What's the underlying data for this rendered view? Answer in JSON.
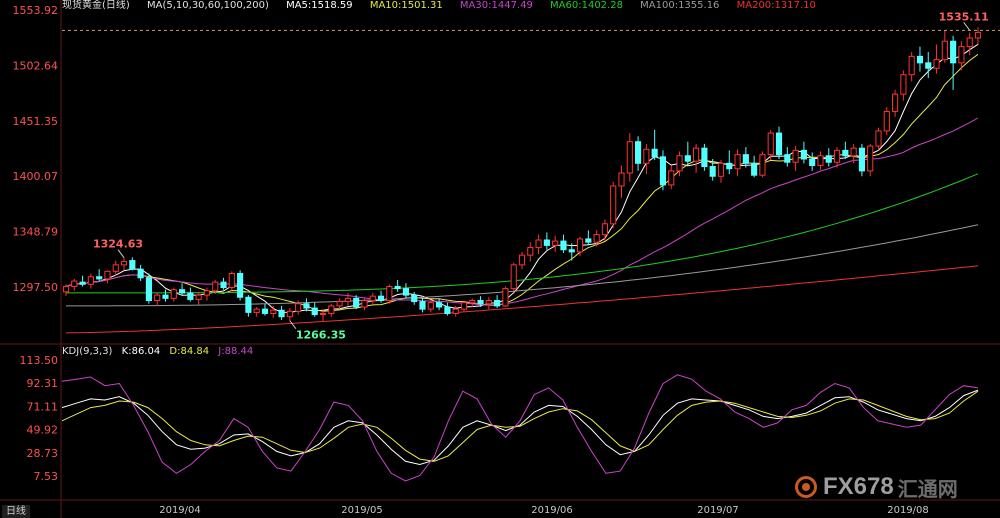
{
  "legend": {
    "title": "现货黄金(日线)",
    "params": "MA(5,10,30,60,100,200)",
    "ma5": "MA5:1518.59",
    "ma10": "MA10:1501.31",
    "ma30": "MA30:1447.49",
    "ma60": "MA60:1402.28",
    "ma100": "MA100:1355.16",
    "ma200": "MA200:1317.10"
  },
  "kdj": {
    "params": "KDJ(9,3,3)",
    "k": "K:86.04",
    "d": "D:84.84",
    "j": "J:88.44"
  },
  "period_tag": "日线",
  "watermark": {
    "brand": "FX678",
    "cn": "汇通网"
  },
  "colors": {
    "up": "#ff3232",
    "down": "#54ffff",
    "up_fill": "#000000",
    "ma5": "#ffffff",
    "ma10": "#e8e84a",
    "ma30": "#cc44cc",
    "ma60": "#22cc22",
    "ma100": "#9a9a9a",
    "ma200": "#ee3333",
    "k": "#ffffff",
    "d": "#e8e84a",
    "j": "#cc44cc",
    "axis_text": "#ff5050",
    "kdj_axis_text": "#ff5050",
    "date_text": "#c8c8c8"
  },
  "chart_data": [
    {
      "type": "candlestick",
      "title": "",
      "y_ticks": [
        1297.5,
        1348.79,
        1400.07,
        1451.35,
        1502.64,
        1553.92
      ],
      "ylim": [
        1250,
        1560
      ],
      "x_labels": [
        "2019/04",
        "2019/05",
        "2019/06",
        "2019/07",
        "2019/08"
      ],
      "annotations": [
        {
          "label": "1324.63",
          "value": 1324.63
        },
        {
          "label": "1266.35",
          "value": 1266.35
        },
        {
          "label": "1535.11",
          "value": 1535.11
        }
      ],
      "current_price_line": 1535.11,
      "candles": [
        [
          1293,
          1300,
          1289,
          1298
        ],
        [
          1298,
          1305,
          1294,
          1303
        ],
        [
          1302,
          1308,
          1298,
          1300
        ],
        [
          1300,
          1310,
          1296,
          1307
        ],
        [
          1307,
          1314,
          1303,
          1305
        ],
        [
          1305,
          1313,
          1301,
          1312
        ],
        [
          1312,
          1322,
          1308,
          1318
        ],
        [
          1318,
          1325,
          1313,
          1321
        ],
        [
          1322,
          1325,
          1313,
          1314
        ],
        [
          1314,
          1318,
          1303,
          1306
        ],
        [
          1306,
          1310,
          1282,
          1285
        ],
        [
          1285,
          1292,
          1280,
          1290
        ],
        [
          1290,
          1295,
          1284,
          1287
        ],
        [
          1287,
          1297,
          1284,
          1295
        ],
        [
          1295,
          1301,
          1290,
          1292
        ],
        [
          1292,
          1297,
          1284,
          1286
        ],
        [
          1286,
          1292,
          1281,
          1290
        ],
        [
          1290,
          1297,
          1285,
          1294
        ],
        [
          1294,
          1304,
          1291,
          1302
        ],
        [
          1302,
          1306,
          1295,
          1297
        ],
        [
          1297,
          1312,
          1294,
          1310
        ],
        [
          1310,
          1313,
          1285,
          1288
        ],
        [
          1288,
          1290,
          1270,
          1274
        ],
        [
          1274,
          1279,
          1270,
          1277
        ],
        [
          1277,
          1282,
          1271,
          1273
        ],
        [
          1273,
          1280,
          1269,
          1276
        ],
        [
          1276,
          1280,
          1267,
          1270
        ],
        [
          1270,
          1278,
          1266,
          1275
        ],
        [
          1275,
          1285,
          1272,
          1282
        ],
        [
          1282,
          1287,
          1275,
          1278
        ],
        [
          1278,
          1283,
          1270,
          1272
        ],
        [
          1272,
          1277,
          1266,
          1273
        ],
        [
          1273,
          1282,
          1270,
          1280
        ],
        [
          1280,
          1287,
          1277,
          1284
        ],
        [
          1284,
          1292,
          1280,
          1287
        ],
        [
          1287,
          1290,
          1277,
          1279
        ],
        [
          1279,
          1287,
          1276,
          1285
        ],
        [
          1285,
          1292,
          1282,
          1289
        ],
        [
          1289,
          1294,
          1283,
          1285
        ],
        [
          1285,
          1300,
          1282,
          1298
        ],
        [
          1298,
          1304,
          1293,
          1296
        ],
        [
          1296,
          1301,
          1287,
          1290
        ],
        [
          1290,
          1293,
          1281,
          1284
        ],
        [
          1284,
          1287,
          1274,
          1277
        ],
        [
          1277,
          1285,
          1274,
          1283
        ],
        [
          1283,
          1287,
          1276,
          1279
        ],
        [
          1279,
          1283,
          1271,
          1273
        ],
        [
          1273,
          1280,
          1270,
          1277
        ],
        [
          1277,
          1285,
          1275,
          1283
        ],
        [
          1283,
          1287,
          1279,
          1285
        ],
        [
          1285,
          1289,
          1279,
          1282
        ],
        [
          1282,
          1288,
          1277,
          1285
        ],
        [
          1285,
          1290,
          1278,
          1280
        ],
        [
          1280,
          1298,
          1279,
          1296
        ],
        [
          1296,
          1320,
          1294,
          1318
        ],
        [
          1318,
          1330,
          1314,
          1327
        ],
        [
          1327,
          1339,
          1321,
          1334
        ],
        [
          1334,
          1346,
          1328,
          1341
        ],
        [
          1341,
          1348,
          1332,
          1336
        ],
        [
          1336,
          1345,
          1330,
          1340
        ],
        [
          1340,
          1346,
          1329,
          1332
        ],
        [
          1332,
          1338,
          1322,
          1330
        ],
        [
          1330,
          1344,
          1326,
          1342
        ],
        [
          1342,
          1350,
          1336,
          1339
        ],
        [
          1339,
          1350,
          1335,
          1346
        ],
        [
          1346,
          1360,
          1340,
          1356
        ],
        [
          1356,
          1395,
          1352,
          1391
        ],
        [
          1391,
          1410,
          1380,
          1403
        ],
        [
          1403,
          1440,
          1395,
          1432
        ],
        [
          1432,
          1437,
          1405,
          1412
        ],
        [
          1412,
          1430,
          1402,
          1425
        ],
        [
          1425,
          1443,
          1415,
          1418
        ],
        [
          1418,
          1424,
          1387,
          1392
        ],
        [
          1392,
          1410,
          1388,
          1405
        ],
        [
          1405,
          1423,
          1400,
          1419
        ],
        [
          1419,
          1432,
          1410,
          1414
        ],
        [
          1414,
          1430,
          1403,
          1426
        ],
        [
          1426,
          1430,
          1405,
          1409
        ],
        [
          1409,
          1416,
          1396,
          1400
        ],
        [
          1400,
          1415,
          1394,
          1412
        ],
        [
          1412,
          1424,
          1402,
          1407
        ],
        [
          1407,
          1425,
          1400,
          1420
        ],
        [
          1420,
          1427,
          1408,
          1412
        ],
        [
          1412,
          1419,
          1399,
          1401
        ],
        [
          1401,
          1423,
          1399,
          1420
        ],
        [
          1420,
          1443,
          1415,
          1440
        ],
        [
          1440,
          1446,
          1416,
          1420
        ],
        [
          1420,
          1427,
          1409,
          1413
        ],
        [
          1413,
          1428,
          1405,
          1424
        ],
        [
          1424,
          1432,
          1412,
          1416
        ],
        [
          1416,
          1422,
          1405,
          1410
        ],
        [
          1410,
          1423,
          1406,
          1419
        ],
        [
          1419,
          1426,
          1409,
          1413
        ],
        [
          1413,
          1427,
          1408,
          1424
        ],
        [
          1424,
          1432,
          1416,
          1419
        ],
        [
          1419,
          1430,
          1412,
          1426
        ],
        [
          1426,
          1430,
          1400,
          1405
        ],
        [
          1405,
          1430,
          1400,
          1428
        ],
        [
          1428,
          1445,
          1424,
          1442
        ],
        [
          1442,
          1464,
          1438,
          1460
        ],
        [
          1460,
          1480,
          1455,
          1476
        ],
        [
          1476,
          1498,
          1470,
          1494
        ],
        [
          1494,
          1515,
          1488,
          1511
        ],
        [
          1511,
          1520,
          1497,
          1505
        ],
        [
          1505,
          1515,
          1491,
          1500
        ],
        [
          1500,
          1522,
          1495,
          1508
        ],
        [
          1508,
          1535,
          1505,
          1525
        ],
        [
          1525,
          1530,
          1480,
          1505
        ],
        [
          1505,
          1525,
          1498,
          1520
        ],
        [
          1520,
          1533,
          1512,
          1528
        ],
        [
          1528,
          1538,
          1522,
          1533
        ]
      ]
    },
    {
      "type": "line",
      "title": "KDJ(9,3,3)",
      "y_ticks": [
        7.53,
        28.73,
        49.92,
        71.11,
        92.31,
        113.5
      ],
      "ylim": [
        -5,
        118
      ],
      "series": [
        {
          "name": "K",
          "values": [
            70,
            74,
            78,
            77,
            80,
            74,
            63,
            48,
            36,
            32,
            33,
            37,
            45,
            46,
            39,
            30,
            26,
            29,
            37,
            52,
            58,
            56,
            45,
            32,
            21,
            18,
            22,
            35,
            52,
            58,
            54,
            49,
            54,
            66,
            72,
            71,
            62,
            50,
            36,
            27,
            30,
            45,
            63,
            74,
            78,
            77,
            76,
            72,
            68,
            62,
            60,
            62,
            65,
            72,
            79,
            80,
            75,
            68,
            64,
            60,
            58,
            62,
            70,
            81,
            86
          ]
        },
        {
          "name": "D",
          "values": [
            58,
            64,
            70,
            72,
            76,
            75,
            70,
            60,
            48,
            40,
            36,
            35,
            40,
            44,
            43,
            37,
            31,
            29,
            33,
            42,
            52,
            55,
            52,
            42,
            31,
            23,
            21,
            26,
            38,
            50,
            54,
            52,
            53,
            60,
            66,
            69,
            67,
            59,
            47,
            35,
            30,
            36,
            50,
            63,
            72,
            75,
            76,
            74,
            70,
            66,
            62,
            61,
            63,
            67,
            74,
            78,
            77,
            72,
            67,
            62,
            59,
            60,
            65,
            76,
            85
          ]
        },
        {
          "name": "J",
          "values": [
            94,
            96,
            98,
            90,
            92,
            72,
            48,
            20,
            10,
            18,
            30,
            40,
            60,
            52,
            30,
            15,
            12,
            30,
            50,
            75,
            72,
            58,
            30,
            10,
            3,
            8,
            25,
            58,
            85,
            78,
            55,
            43,
            58,
            82,
            88,
            77,
            52,
            30,
            10,
            12,
            33,
            65,
            92,
            100,
            96,
            85,
            78,
            66,
            60,
            52,
            56,
            68,
            72,
            84,
            92,
            88,
            70,
            58,
            55,
            52,
            54,
            68,
            82,
            90,
            88
          ]
        }
      ]
    }
  ]
}
